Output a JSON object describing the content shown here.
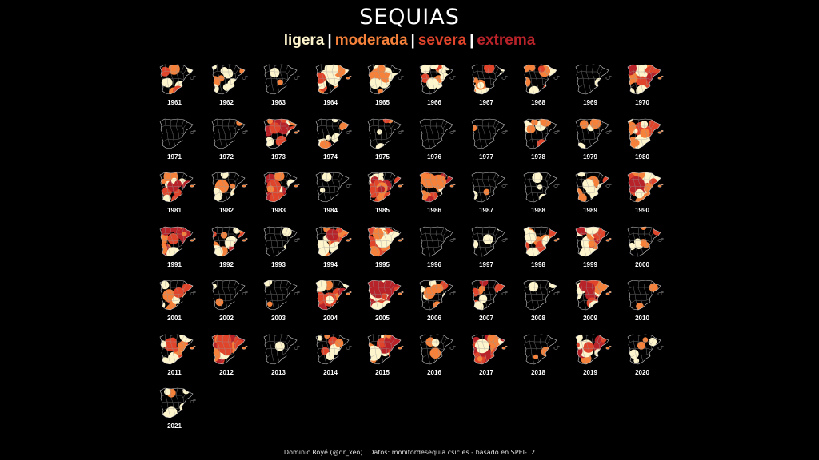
{
  "title": "SEQUIAS",
  "legend": {
    "items": [
      {
        "label": "ligera",
        "color": "#fff5cc"
      },
      {
        "label": "moderada",
        "color": "#f5813a"
      },
      {
        "label": "severa",
        "color": "#e0442a"
      },
      {
        "label": "extrema",
        "color": "#b8232a"
      }
    ],
    "separator": "|"
  },
  "credit": "Dominic Royé (@dr_xeo) | Datos: monitordesequia.csic.es - basado en SPEI-12",
  "maps": [
    {
      "year": "1961",
      "coverage": 0.3,
      "severity": 1
    },
    {
      "year": "1962",
      "coverage": 0.25,
      "severity": 0
    },
    {
      "year": "1963",
      "coverage": 0.05,
      "severity": 0
    },
    {
      "year": "1964",
      "coverage": 0.5,
      "severity": 1
    },
    {
      "year": "1965",
      "coverage": 0.3,
      "severity": 0
    },
    {
      "year": "1966",
      "coverage": 0.4,
      "severity": 1
    },
    {
      "year": "1967",
      "coverage": 0.4,
      "severity": 1
    },
    {
      "year": "1968",
      "coverage": 0.35,
      "severity": 1
    },
    {
      "year": "1969",
      "coverage": 0.05,
      "severity": 0
    },
    {
      "year": "1970",
      "coverage": 0.8,
      "severity": 2
    },
    {
      "year": "1971",
      "coverage": 0.0,
      "severity": 0
    },
    {
      "year": "1972",
      "coverage": 0.05,
      "severity": 0
    },
    {
      "year": "1973",
      "coverage": 0.5,
      "severity": 2
    },
    {
      "year": "1974",
      "coverage": 0.35,
      "severity": 1
    },
    {
      "year": "1975",
      "coverage": 0.2,
      "severity": 1
    },
    {
      "year": "1976",
      "coverage": 0.02,
      "severity": 0
    },
    {
      "year": "1977",
      "coverage": 0.02,
      "severity": 0
    },
    {
      "year": "1978",
      "coverage": 0.25,
      "severity": 1
    },
    {
      "year": "1979",
      "coverage": 0.15,
      "severity": 0
    },
    {
      "year": "1980",
      "coverage": 0.6,
      "severity": 1
    },
    {
      "year": "1981",
      "coverage": 0.55,
      "severity": 2
    },
    {
      "year": "1982",
      "coverage": 0.45,
      "severity": 1
    },
    {
      "year": "1983",
      "coverage": 0.6,
      "severity": 2
    },
    {
      "year": "1984",
      "coverage": 0.05,
      "severity": 0
    },
    {
      "year": "1985",
      "coverage": 0.55,
      "severity": 2
    },
    {
      "year": "1986",
      "coverage": 0.65,
      "severity": 2
    },
    {
      "year": "1987",
      "coverage": 0.1,
      "severity": 0
    },
    {
      "year": "1988",
      "coverage": 0.15,
      "severity": 0
    },
    {
      "year": "1989",
      "coverage": 0.4,
      "severity": 1
    },
    {
      "year": "1990",
      "coverage": 0.8,
      "severity": 2
    },
    {
      "year": "1991",
      "coverage": 0.5,
      "severity": 2
    },
    {
      "year": "1992",
      "coverage": 0.45,
      "severity": 2
    },
    {
      "year": "1993",
      "coverage": 0.1,
      "severity": 0
    },
    {
      "year": "1994",
      "coverage": 0.75,
      "severity": 2
    },
    {
      "year": "1995",
      "coverage": 0.75,
      "severity": 2
    },
    {
      "year": "1996",
      "coverage": 0.0,
      "severity": 0
    },
    {
      "year": "1997",
      "coverage": 0.1,
      "severity": 0
    },
    {
      "year": "1998",
      "coverage": 0.55,
      "severity": 1
    },
    {
      "year": "1999",
      "coverage": 0.55,
      "severity": 2
    },
    {
      "year": "2000",
      "coverage": 0.25,
      "severity": 1
    },
    {
      "year": "2001",
      "coverage": 0.35,
      "severity": 1
    },
    {
      "year": "2002",
      "coverage": 0.05,
      "severity": 0
    },
    {
      "year": "2003",
      "coverage": 0.05,
      "severity": 0
    },
    {
      "year": "2004",
      "coverage": 0.5,
      "severity": 2
    },
    {
      "year": "2005",
      "coverage": 0.9,
      "severity": 3
    },
    {
      "year": "2006",
      "coverage": 0.3,
      "severity": 1
    },
    {
      "year": "2007",
      "coverage": 0.3,
      "severity": 2
    },
    {
      "year": "2008",
      "coverage": 0.05,
      "severity": 0
    },
    {
      "year": "2009",
      "coverage": 0.6,
      "severity": 2
    },
    {
      "year": "2010",
      "coverage": 0.05,
      "severity": 0
    },
    {
      "year": "2011",
      "coverage": 0.55,
      "severity": 2
    },
    {
      "year": "2012",
      "coverage": 0.7,
      "severity": 2
    },
    {
      "year": "2013",
      "coverage": 0.02,
      "severity": 0
    },
    {
      "year": "2014",
      "coverage": 0.2,
      "severity": 1
    },
    {
      "year": "2015",
      "coverage": 0.7,
      "severity": 2
    },
    {
      "year": "2016",
      "coverage": 0.15,
      "severity": 0
    },
    {
      "year": "2017",
      "coverage": 0.95,
      "severity": 3
    },
    {
      "year": "2018",
      "coverage": 0.05,
      "severity": 0
    },
    {
      "year": "2019",
      "coverage": 0.55,
      "severity": 2
    },
    {
      "year": "2020",
      "coverage": 0.2,
      "severity": 0
    },
    {
      "year": "2021",
      "coverage": 0.2,
      "severity": 0
    }
  ]
}
